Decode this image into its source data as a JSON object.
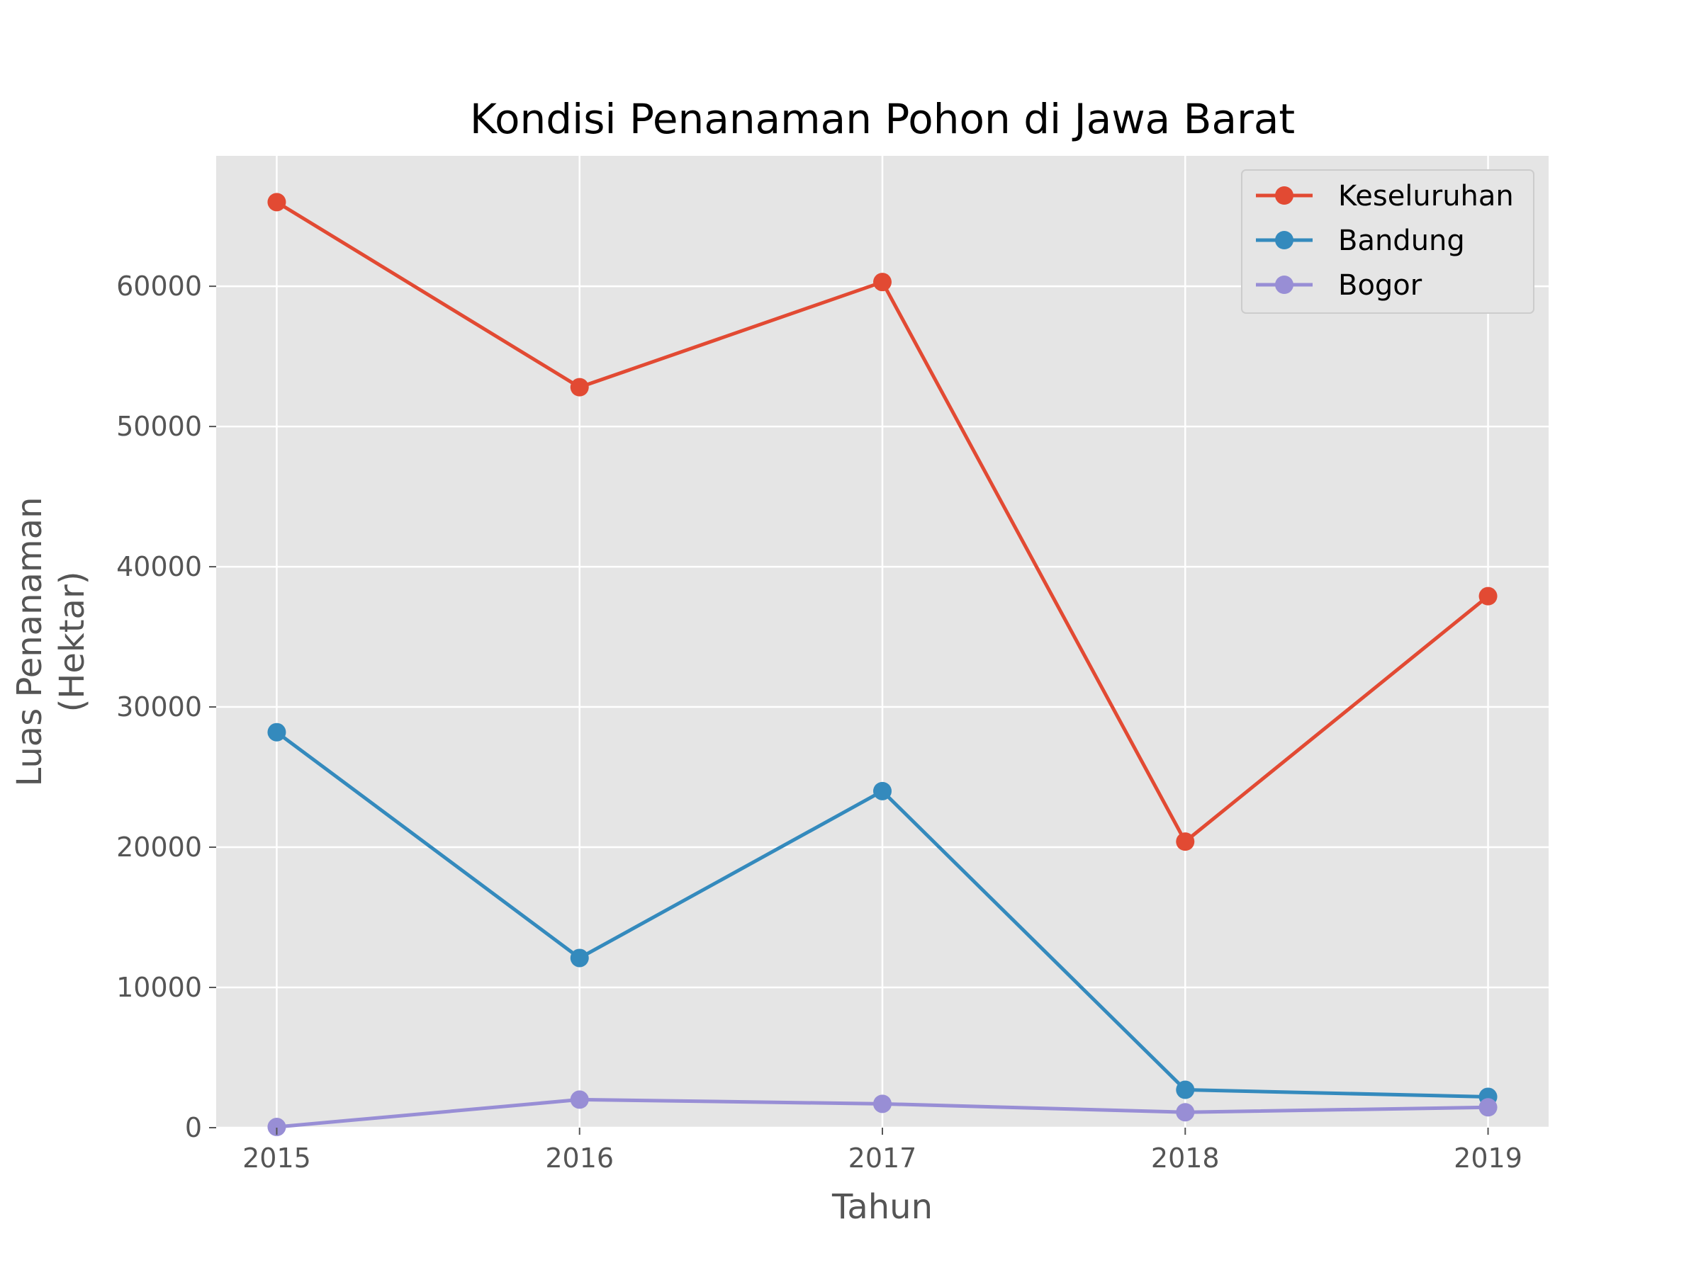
{
  "chart_data": {
    "type": "line",
    "title": "Kondisi Penanaman Pohon di Jawa Barat",
    "xlabel": "Tahun",
    "ylabel_lines": [
      "Luas Penanaman",
      "(Hektar)"
    ],
    "categories": [
      "2015",
      "2016",
      "2017",
      "2018",
      "2019"
    ],
    "x": [
      2015,
      2016,
      2017,
      2018,
      2019
    ],
    "xlim": [
      2014.8,
      2019.2
    ],
    "ylim": [
      0,
      69300
    ],
    "yticks": [
      0,
      10000,
      20000,
      30000,
      40000,
      50000,
      60000
    ],
    "ytick_labels": [
      "0",
      "10000",
      "20000",
      "30000",
      "40000",
      "50000",
      "60000"
    ],
    "grid": true,
    "legend_position": "top-right",
    "background_color": "#e5e5e5",
    "series": [
      {
        "name": "Keseluruhan",
        "color": "#e24a33",
        "values": [
          66000,
          52800,
          60300,
          20400,
          37900
        ]
      },
      {
        "name": "Bandung",
        "color": "#348abd",
        "values": [
          28200,
          12100,
          24000,
          2700,
          2200
        ]
      },
      {
        "name": "Bogor",
        "color": "#988ed5",
        "values": [
          50,
          2000,
          1700,
          1100,
          1450
        ]
      }
    ]
  }
}
